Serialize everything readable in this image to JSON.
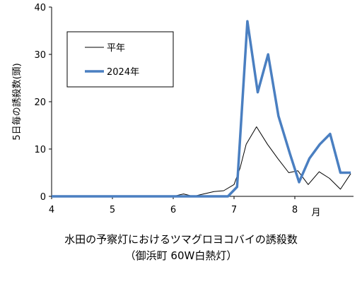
{
  "chart_data": {
    "type": "line",
    "title": "水田の予察灯におけるツマグロヨコバイの誘殺数",
    "subtitle": "（御浜町 60W白熱灯）",
    "ylabel": "5日毎の誘殺数(頭)",
    "xlabel": "月",
    "ylim": [
      0,
      40
    ],
    "yticks": [
      0,
      10,
      20,
      30,
      40
    ],
    "xlim": [
      4,
      8.92
    ],
    "xticks": [
      {
        "value": 4,
        "label": "4"
      },
      {
        "value": 5,
        "label": "5"
      },
      {
        "value": 6,
        "label": "6"
      },
      {
        "value": 7,
        "label": "7"
      },
      {
        "value": 8,
        "label": "8"
      }
    ],
    "legend": {
      "position": "top-left",
      "boxed": true
    },
    "series": [
      {
        "name": "平年",
        "color": "#000000",
        "style": "thin",
        "points": [
          [
            4.0,
            0
          ],
          [
            4.5,
            0
          ],
          [
            5.0,
            0
          ],
          [
            5.5,
            0
          ],
          [
            6.0,
            0
          ],
          [
            6.17,
            0.5
          ],
          [
            6.33,
            0
          ],
          [
            6.5,
            0.5
          ],
          [
            6.67,
            1
          ],
          [
            6.83,
            1.2
          ],
          [
            7.0,
            2.5
          ],
          [
            7.1,
            6
          ],
          [
            7.2,
            11
          ],
          [
            7.37,
            14.7
          ],
          [
            7.55,
            11
          ],
          [
            7.72,
            8
          ],
          [
            7.9,
            5
          ],
          [
            8.05,
            5.4
          ],
          [
            8.22,
            2.5
          ],
          [
            8.4,
            5.2
          ],
          [
            8.57,
            3.8
          ],
          [
            8.75,
            1.5
          ],
          [
            8.92,
            4.8
          ]
        ]
      },
      {
        "name": "2024年",
        "color": "#4a7fc1",
        "style": "thick",
        "points": [
          [
            4.0,
            0
          ],
          [
            4.5,
            0
          ],
          [
            5.0,
            0
          ],
          [
            5.5,
            0
          ],
          [
            6.0,
            0
          ],
          [
            6.5,
            0
          ],
          [
            6.9,
            0
          ],
          [
            7.05,
            2
          ],
          [
            7.22,
            37
          ],
          [
            7.39,
            22
          ],
          [
            7.56,
            30
          ],
          [
            7.73,
            17
          ],
          [
            7.92,
            9
          ],
          [
            8.07,
            3
          ],
          [
            8.24,
            8
          ],
          [
            8.41,
            11
          ],
          [
            8.58,
            13.2
          ],
          [
            8.75,
            5
          ],
          [
            8.92,
            5
          ]
        ]
      }
    ]
  }
}
